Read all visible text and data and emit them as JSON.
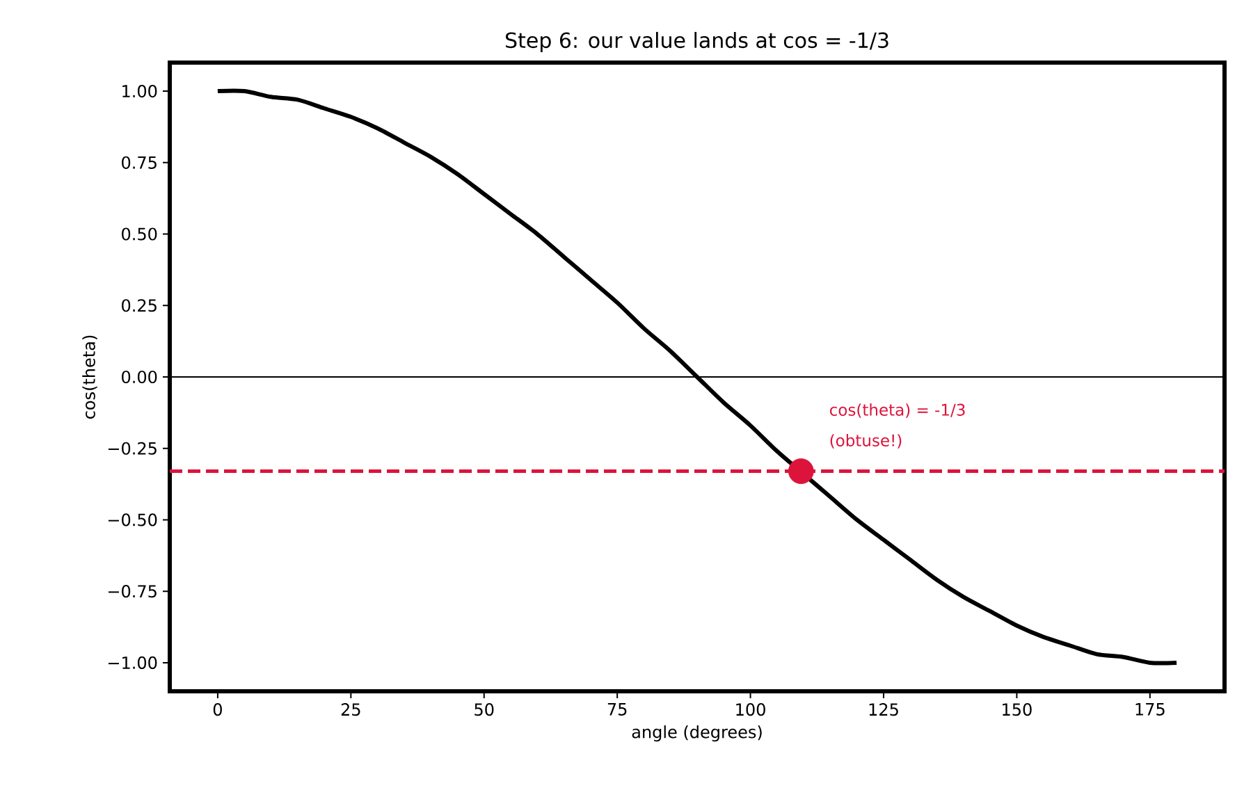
{
  "chart_data": {
    "type": "line",
    "title": "Step 6: our value lands at cos = -1/3",
    "xlabel": "angle (degrees)",
    "ylabel": "cos(theta)",
    "xlim": [
      -9,
      189
    ],
    "ylim": [
      -1.1,
      1.1
    ],
    "xticks": [
      0,
      25,
      50,
      75,
      100,
      125,
      150,
      175
    ],
    "yticks": [
      {
        "value": -1,
        "label": "−1.00"
      },
      {
        "value": -0.75,
        "label": "−0.75"
      },
      {
        "value": -0.5,
        "label": "−0.50"
      },
      {
        "value": -0.25,
        "label": "−0.25"
      },
      {
        "value": 0,
        "label": "0.00"
      },
      {
        "value": 0.25,
        "label": "0.25"
      },
      {
        "value": 0.5,
        "label": "0.50"
      },
      {
        "value": 0.75,
        "label": "0.75"
      },
      {
        "value": 1,
        "label": "1.00"
      }
    ],
    "series": [
      {
        "color": "#000000",
        "line_style": "solid",
        "x": [
          0,
          5,
          10,
          15,
          20,
          25,
          30,
          35,
          40,
          45,
          50,
          55,
          60,
          65,
          70,
          75,
          80,
          85,
          90,
          95,
          100,
          105,
          110,
          115,
          120,
          125,
          130,
          135,
          140,
          145,
          150,
          155,
          160,
          165,
          170,
          175,
          180
        ],
        "values": [
          1.0,
          1.0,
          0.98,
          0.97,
          0.94,
          0.91,
          0.87,
          0.82,
          0.77,
          0.71,
          0.64,
          0.57,
          0.5,
          0.42,
          0.34,
          0.26,
          0.17,
          0.09,
          0.0,
          -0.09,
          -0.17,
          -0.26,
          -0.34,
          -0.42,
          -0.5,
          -0.57,
          -0.64,
          -0.71,
          -0.77,
          -0.82,
          -0.87,
          -0.91,
          -0.94,
          -0.97,
          -0.98,
          -1.0,
          -1.0
        ]
      },
      {
        "type": "scatter",
        "color": "#dc143c",
        "marker": "circle",
        "x": [
          109.5
        ],
        "values": [
          -0.33
        ]
      }
    ],
    "ref_lines": [
      {
        "axis": "y",
        "value": 0,
        "color": "#000000",
        "line_style": "solid"
      },
      {
        "axis": "y",
        "value": -0.33,
        "color": "#dc143c",
        "line_style": "dashed"
      }
    ],
    "annotations": [
      "cos(theta) = -1/3",
      "(obtuse!)"
    ]
  }
}
